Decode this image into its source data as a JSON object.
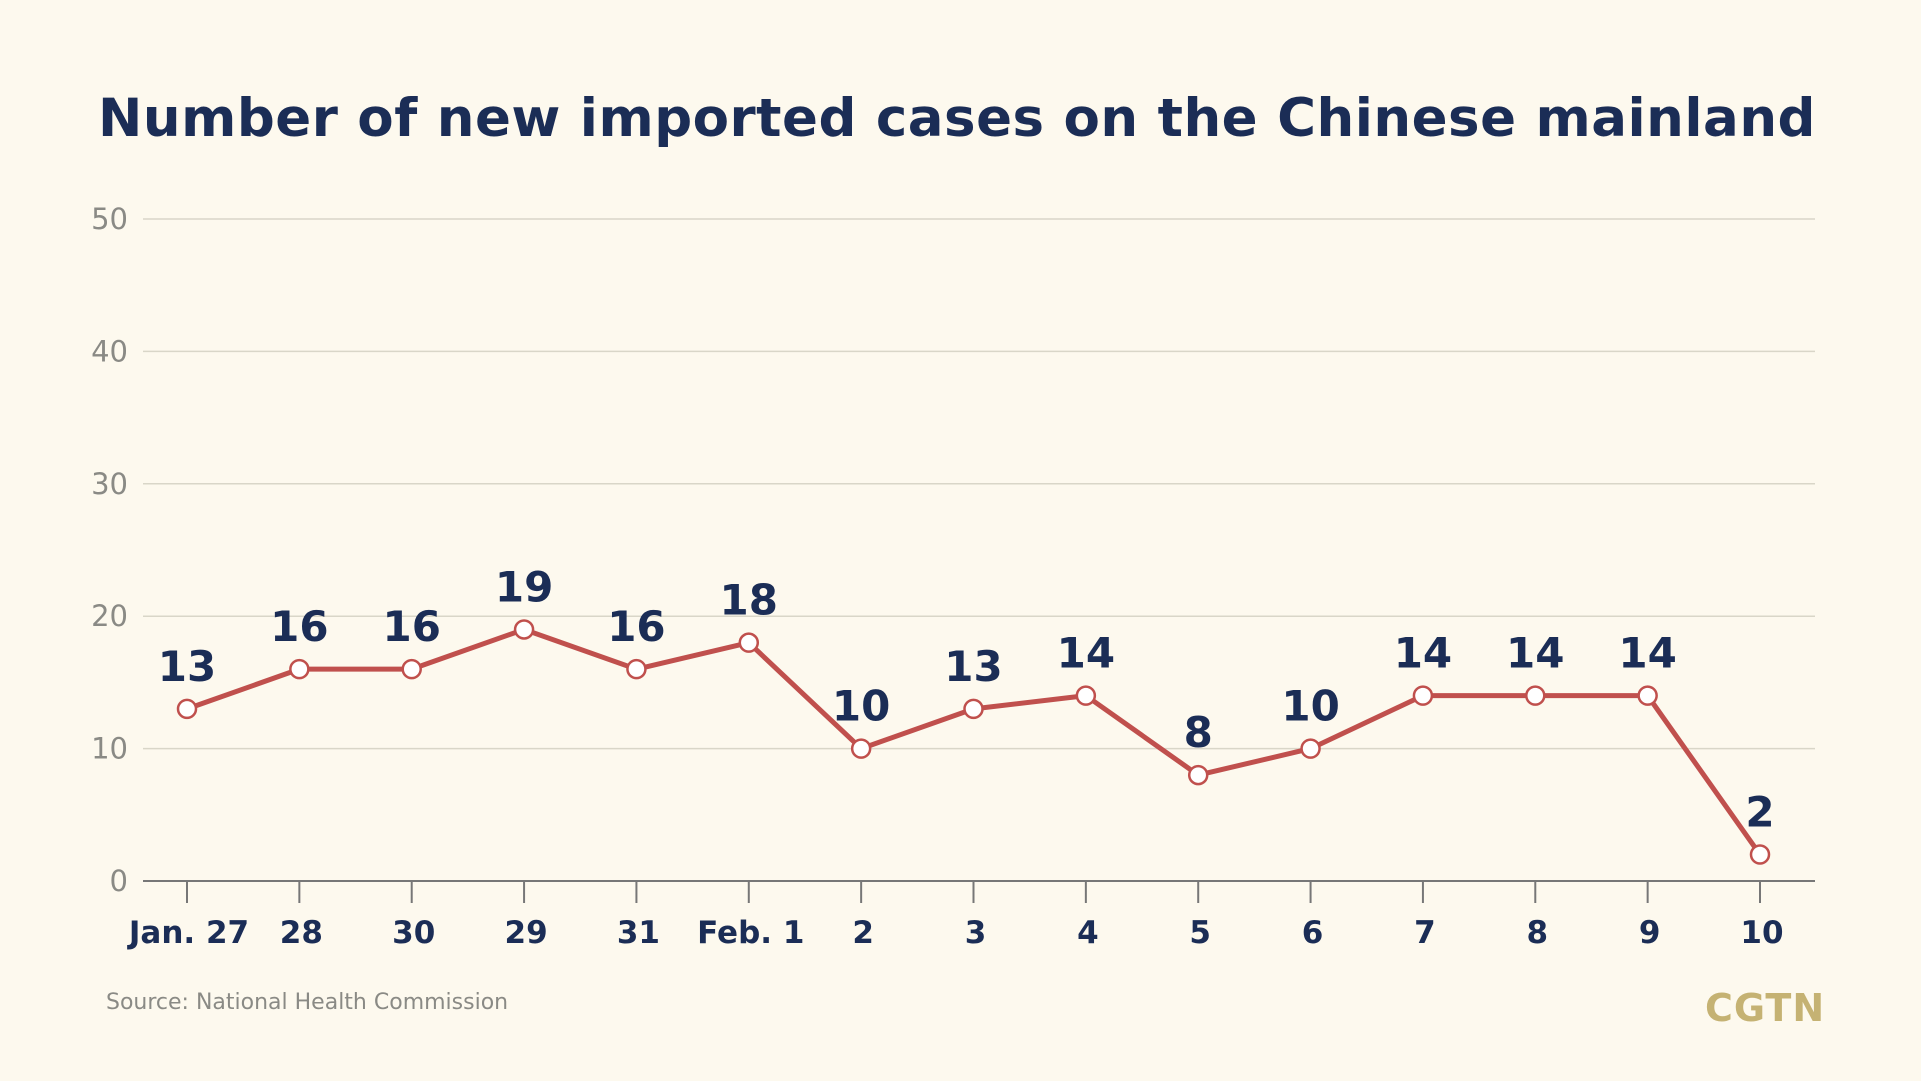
{
  "chart_data": {
    "type": "line",
    "title": "Number of new imported cases on the Chinese mainland",
    "categories": [
      "Jan. 27",
      "28",
      "30",
      "29",
      "31",
      "Feb. 1",
      "2",
      "3",
      "4",
      "5",
      "6",
      "7",
      "8",
      "9",
      "10"
    ],
    "values": [
      13,
      16,
      16,
      19,
      16,
      18,
      10,
      13,
      14,
      8,
      10,
      14,
      14,
      14,
      2
    ],
    "y_ticks": [
      0,
      10,
      20,
      30,
      40,
      50
    ],
    "ylim": [
      0,
      50
    ],
    "xlabel": "",
    "ylabel": "",
    "grid": true,
    "colors": {
      "line": "#c0504d",
      "label": "#1b2d56",
      "grid": "#d9d6c8",
      "axis": "#777777"
    }
  },
  "source": "Source: National Health Commission",
  "logo": "CGTN"
}
